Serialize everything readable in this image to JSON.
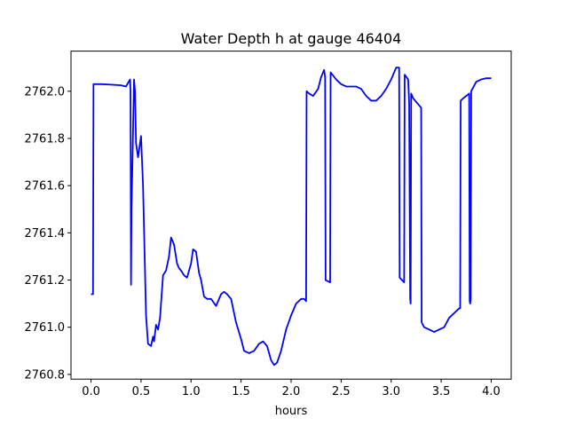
{
  "chart_data": {
    "type": "line",
    "title": "Water Depth h at gauge 46404",
    "xlabel": "hours",
    "ylabel": "",
    "xlim": [
      -0.2,
      4.2
    ],
    "ylim": [
      2760.78,
      2762.17
    ],
    "xticks": [
      0.0,
      0.5,
      1.0,
      1.5,
      2.0,
      2.5,
      3.0,
      3.5,
      4.0
    ],
    "xtick_labels": [
      "0.0",
      "0.5",
      "1.0",
      "1.5",
      "2.0",
      "2.5",
      "3.0",
      "3.5",
      "4.0"
    ],
    "yticks": [
      2760.8,
      2761.0,
      2761.2,
      2761.4,
      2761.6,
      2761.8,
      2762.0
    ],
    "ytick_labels": [
      "2760.8",
      "2761.0",
      "2761.2",
      "2761.4",
      "2761.6",
      "2761.8",
      "2762.0"
    ],
    "grid": false,
    "line_color": "#0000ff",
    "series": [
      {
        "x": [
          0.0,
          0.02,
          0.025,
          0.1,
          0.2,
          0.3,
          0.35,
          0.39,
          0.395,
          0.4,
          0.405,
          0.43,
          0.44,
          0.45,
          0.47,
          0.5,
          0.52,
          0.55,
          0.57,
          0.6,
          0.62,
          0.63,
          0.65,
          0.67,
          0.69,
          0.7,
          0.72,
          0.75,
          0.78,
          0.8,
          0.83,
          0.86,
          0.88,
          0.9,
          0.93,
          0.96,
          1.0,
          1.02,
          1.05,
          1.07,
          1.08,
          1.1,
          1.13,
          1.16,
          1.2,
          1.25,
          1.3,
          1.33,
          1.36,
          1.4,
          1.45,
          1.5,
          1.53,
          1.58,
          1.63,
          1.68,
          1.72,
          1.76,
          1.8,
          1.83,
          1.86,
          1.9,
          1.95,
          2.0,
          2.05,
          2.1,
          2.13,
          2.15,
          2.155,
          2.18,
          2.22,
          2.27,
          2.3,
          2.33,
          2.34,
          2.345,
          2.39,
          2.395,
          2.45,
          2.5,
          2.55,
          2.6,
          2.65,
          2.7,
          2.75,
          2.8,
          2.85,
          2.9,
          2.95,
          3.0,
          3.05,
          3.08,
          3.085,
          3.13,
          3.135,
          3.17,
          3.18,
          3.19,
          3.195,
          3.2,
          3.22,
          3.3,
          3.305,
          3.33,
          3.38,
          3.43,
          3.48,
          3.53,
          3.58,
          3.63,
          3.68,
          3.69,
          3.695,
          3.72,
          3.75,
          3.78,
          3.785,
          3.79,
          3.795,
          3.8,
          3.85,
          3.9,
          3.95,
          4.0
        ],
        "y": [
          2761.14,
          2761.14,
          2762.03,
          2762.03,
          2762.028,
          2762.025,
          2762.02,
          2762.05,
          2762.0,
          2761.18,
          2761.5,
          2762.05,
          2762.0,
          2761.78,
          2761.72,
          2761.81,
          2761.6,
          2761.05,
          2760.93,
          2760.92,
          2760.96,
          2760.94,
          2761.01,
          2760.99,
          2761.04,
          2761.1,
          2761.22,
          2761.24,
          2761.3,
          2761.38,
          2761.35,
          2761.27,
          2761.25,
          2761.24,
          2761.22,
          2761.21,
          2761.27,
          2761.33,
          2761.32,
          2761.26,
          2761.23,
          2761.2,
          2761.13,
          2761.12,
          2761.12,
          2761.09,
          2761.14,
          2761.15,
          2761.14,
          2761.12,
          2761.02,
          2760.95,
          2760.9,
          2760.89,
          2760.9,
          2760.93,
          2760.94,
          2760.92,
          2760.86,
          2760.84,
          2760.85,
          2760.9,
          2760.99,
          2761.05,
          2761.1,
          2761.12,
          2761.12,
          2761.11,
          2762.0,
          2761.99,
          2761.98,
          2762.01,
          2762.06,
          2762.09,
          2762.06,
          2761.2,
          2761.19,
          2762.08,
          2762.05,
          2762.03,
          2762.02,
          2762.02,
          2762.02,
          2762.01,
          2761.98,
          2761.96,
          2761.96,
          2761.98,
          2762.01,
          2762.05,
          2762.1,
          2762.1,
          2761.21,
          2761.19,
          2762.07,
          2762.05,
          2761.95,
          2761.12,
          2761.1,
          2761.99,
          2761.97,
          2761.93,
          2761.02,
          2761.0,
          2760.99,
          2760.98,
          2760.99,
          2761.0,
          2761.04,
          2761.06,
          2761.08,
          2761.08,
          2761.96,
          2761.97,
          2761.98,
          2761.99,
          2761.11,
          2761.1,
          2761.12,
          2762.0,
          2762.04,
          2762.05,
          2762.055,
          2762.055
        ]
      }
    ]
  }
}
